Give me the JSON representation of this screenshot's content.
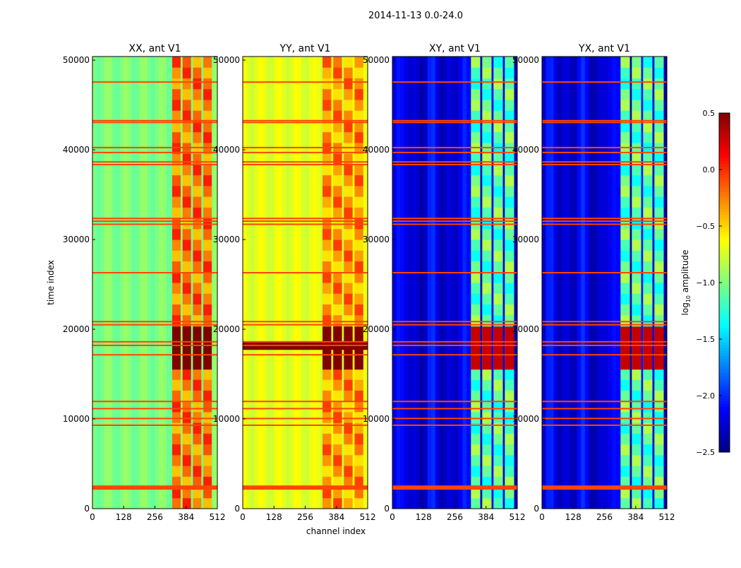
{
  "chart_data": {
    "type": "heatmap",
    "suptitle": "2014-11-13 0.0-24.0",
    "xlabel": "channel index",
    "ylabel": "time index",
    "xlim": [
      0,
      512
    ],
    "ylim": [
      0,
      50400
    ],
    "xticks": [
      0,
      128,
      256,
      384,
      512
    ],
    "yticks": [
      0,
      10000,
      20000,
      30000,
      40000,
      50000
    ],
    "colorbar": {
      "label_pre": "log",
      "label_sub": "10",
      "label_post": " amplitude",
      "range": [
        -2.5,
        0.5
      ],
      "ticks": [
        "0.5",
        "0.0",
        "−0.5",
        "−1.0",
        "−1.5",
        "−2.0",
        "−2.5"
      ],
      "tick_values": [
        0.5,
        0.0,
        -0.5,
        -1.0,
        -1.5,
        -2.0,
        -2.5
      ],
      "colormap": "jet"
    },
    "panels": [
      {
        "title": "XX, ant V1",
        "background": -1.0,
        "active": -0.2,
        "burst": 0.5,
        "active_channels": [
          325,
          495
        ]
      },
      {
        "title": "YY, ant V1",
        "background": -0.7,
        "active": -0.3,
        "burst": 0.5,
        "active_channels": [
          325,
          500
        ]
      },
      {
        "title": "XY, ant V1",
        "background": -2.3,
        "active": -1.1,
        "burst": 0.3,
        "active_channels": [
          320,
          505
        ]
      },
      {
        "title": "YX, ant V1",
        "background": -2.3,
        "active": -1.1,
        "burst": 0.3,
        "active_channels": [
          320,
          505
        ]
      }
    ],
    "flagged_time_indices": [
      2350,
      9300,
      10050,
      11150,
      11950,
      17150,
      18200,
      18600,
      20500,
      20850,
      26300,
      31700,
      32050,
      32350,
      38350,
      38650,
      39700,
      40250,
      43050,
      43250,
      47550
    ],
    "burst_time_range": [
      15500,
      20300
    ]
  }
}
